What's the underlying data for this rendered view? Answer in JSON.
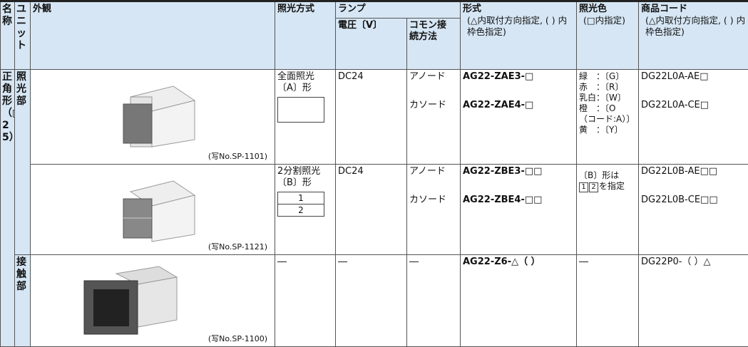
{
  "header": {
    "name": "名称",
    "unit": "ユニット",
    "appearance": "外観",
    "lighting": "照光方式",
    "lamp": "ランプ",
    "voltage": "電圧〔V〕",
    "common": "コモン接続方法",
    "model": "形式",
    "model_note": "(△内取付方向指定, ( ) 内枠色指定)",
    "color": "照光色",
    "color_note": "(□内指定)",
    "code": "商品コード",
    "code_note": "(△内取付方向指定, ( ) 内枠色指定)"
  },
  "group": "正角形（□25）",
  "units": [
    "照光部",
    "接触部"
  ],
  "rows": [
    {
      "caption": "(写No.SP-1101)",
      "lighting": "全面照光〔A〕形",
      "voltage": "DC24",
      "commons": [
        "アノード",
        "カソード"
      ],
      "models": [
        "AG22-ZAE3-□",
        "AG22-ZAE4-□"
      ],
      "colors": [
        "緑　：〔G〕",
        "赤　：〔R〕",
        "乳白：〔W〕",
        "橙　：〔O",
        "（コード:A）〕",
        "黄　：〔Y〕"
      ],
      "codes": [
        "DG22L0A-AE□",
        "DG22L0A-CE□"
      ]
    },
    {
      "caption": "(写No.SP-1121)",
      "lighting": "2分割照光〔B〕形",
      "segments": [
        "1",
        "2"
      ],
      "voltage": "DC24",
      "commons": [
        "アノード",
        "カソード"
      ],
      "models": [
        "AG22-ZBE3-□□",
        "AG22-ZBE4-□□"
      ],
      "color_note": "〔B〕形は",
      "color_boxes": [
        "1",
        "2"
      ],
      "color_suffix": "を指定",
      "codes": [
        "DG22L0B-AE□□",
        "DG22L0B-CE□□"
      ]
    },
    {
      "caption": "(写No.SP-1100)",
      "lighting": "―",
      "voltage": "―",
      "common": "―",
      "model": "AG22-Z6-△（ ）",
      "color": "―",
      "code": "DG22P0-（ ）△"
    }
  ]
}
